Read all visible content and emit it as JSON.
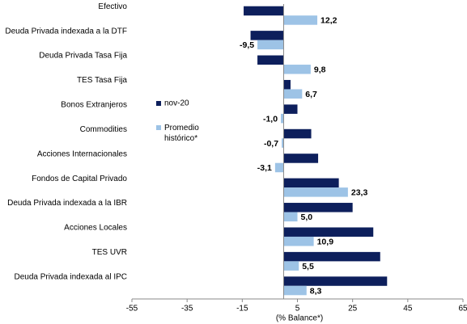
{
  "chart_data": {
    "type": "hbar",
    "x_label": "(% Balance*)",
    "categories": [
      "Efectivo",
      "Deuda Privada indexada a la DTF",
      "Deuda Privada Tasa Fija",
      "TES Tasa Fija",
      "Bonos Extranjeros",
      "Commodities",
      "Acciones Internacionales",
      "Fondos de Capital Privado",
      "Deuda Privada indexada a la IBR",
      "Acciones Locales",
      "TES UVR",
      "Deuda Privada indexada al IPC"
    ],
    "series": [
      {
        "name": "nov-20",
        "color": "#0d1f5c",
        "values": [
          -14.5,
          -12,
          -9.5,
          2.5,
          5,
          10,
          12.5,
          20,
          25,
          32.5,
          35,
          37.5
        ]
      },
      {
        "name": "Promedio histórico*",
        "color": "#9dc3e6",
        "values": [
          12.2,
          -9.5,
          9.8,
          6.7,
          -1.0,
          -0.7,
          -3.1,
          23.3,
          5.0,
          10.9,
          5.5,
          8.3
        ],
        "value_labels": [
          "12,2",
          "-9,5",
          "9,8",
          "6,7",
          "-1,0",
          "-0,7",
          "-3,1",
          "23,3",
          "5,0",
          "10,9",
          "5,5",
          "8,3"
        ]
      }
    ],
    "xlim": [
      -55,
      65
    ],
    "xticks": [
      -55,
      -35,
      -15,
      5,
      25,
      45,
      65
    ]
  }
}
